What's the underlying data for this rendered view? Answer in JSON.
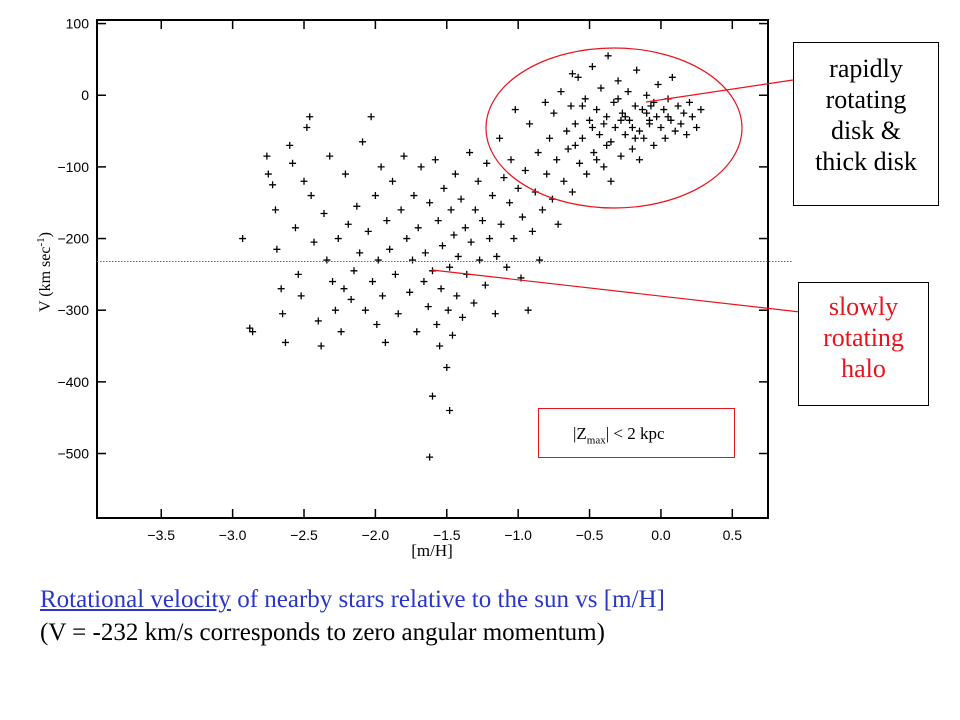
{
  "chart_data": {
    "type": "scatter",
    "xlabel": "[m/H]",
    "ylabel": "V (km sec",
    "ylabel_sup": "-1",
    "ylabel_close": ")",
    "xlim": [
      -3.95,
      0.75
    ],
    "ylim": [
      -590,
      105
    ],
    "xticks": [
      -3.5,
      -3.0,
      -2.5,
      -2.0,
      -1.5,
      -1.0,
      -0.5,
      0.0,
      0.5
    ],
    "xtick_labels": [
      "−3.5",
      "−3.0",
      "−2.5",
      "−2.0",
      "−1.5",
      "−1.0",
      "−0.5",
      "0.0",
      "0.5"
    ],
    "yticks": [
      100,
      0,
      -100,
      -200,
      -300,
      -400,
      -500
    ],
    "ytick_labels": [
      "100",
      "0",
      "−100",
      "−200",
      "−300",
      "−400",
      "−500"
    ],
    "marker": "plus",
    "reference_line_v": -232,
    "series": [
      {
        "values": [
          [
            -2.93,
            -200
          ],
          [
            -2.88,
            -325
          ],
          [
            -2.86,
            -330
          ],
          [
            -2.76,
            -85
          ],
          [
            -2.75,
            -110
          ],
          [
            -2.72,
            -125
          ],
          [
            -2.7,
            -160
          ],
          [
            -2.69,
            -215
          ],
          [
            -2.66,
            -270
          ],
          [
            -2.65,
            -305
          ],
          [
            -2.63,
            -345
          ],
          [
            -2.6,
            -70
          ],
          [
            -2.58,
            -95
          ],
          [
            -2.56,
            -185
          ],
          [
            -2.54,
            -250
          ],
          [
            -2.52,
            -280
          ],
          [
            -2.5,
            -120
          ],
          [
            -2.48,
            -45
          ],
          [
            -2.46,
            -30
          ],
          [
            -2.45,
            -140
          ],
          [
            -2.43,
            -205
          ],
          [
            -2.4,
            -315
          ],
          [
            -2.38,
            -350
          ],
          [
            -2.36,
            -165
          ],
          [
            -2.34,
            -230
          ],
          [
            -2.32,
            -85
          ],
          [
            -2.3,
            -260
          ],
          [
            -2.28,
            -300
          ],
          [
            -2.26,
            -200
          ],
          [
            -2.24,
            -330
          ],
          [
            -2.22,
            -270
          ],
          [
            -2.21,
            -110
          ],
          [
            -2.19,
            -180
          ],
          [
            -2.17,
            -285
          ],
          [
            -2.15,
            -245
          ],
          [
            -2.13,
            -155
          ],
          [
            -2.11,
            -220
          ],
          [
            -2.09,
            -65
          ],
          [
            -2.07,
            -300
          ],
          [
            -2.05,
            -190
          ],
          [
            -2.03,
            -30
          ],
          [
            -2.02,
            -260
          ],
          [
            -2.0,
            -140
          ],
          [
            -1.99,
            -320
          ],
          [
            -1.98,
            -230
          ],
          [
            -1.96,
            -100
          ],
          [
            -1.95,
            -280
          ],
          [
            -1.93,
            -345
          ],
          [
            -1.92,
            -175
          ],
          [
            -1.9,
            -215
          ],
          [
            -1.88,
            -120
          ],
          [
            -1.86,
            -250
          ],
          [
            -1.84,
            -305
          ],
          [
            -1.82,
            -160
          ],
          [
            -1.8,
            -85
          ],
          [
            -1.78,
            -200
          ],
          [
            -1.76,
            -275
          ],
          [
            -1.74,
            -230
          ],
          [
            -1.73,
            -140
          ],
          [
            -1.71,
            -330
          ],
          [
            -1.7,
            -185
          ],
          [
            -1.68,
            -100
          ],
          [
            -1.66,
            -260
          ],
          [
            -1.65,
            -220
          ],
          [
            -1.63,
            -295
          ],
          [
            -1.62,
            -150
          ],
          [
            -1.6,
            -245
          ],
          [
            -1.58,
            -90
          ],
          [
            -1.57,
            -320
          ],
          [
            -1.56,
            -175
          ],
          [
            -1.55,
            -350
          ],
          [
            -1.54,
            -270
          ],
          [
            -1.53,
            -210
          ],
          [
            -1.52,
            -130
          ],
          [
            -1.5,
            -380
          ],
          [
            -1.49,
            -300
          ],
          [
            -1.48,
            -240
          ],
          [
            -1.47,
            -160
          ],
          [
            -1.46,
            -335
          ],
          [
            -1.45,
            -195
          ],
          [
            -1.44,
            -110
          ],
          [
            -1.43,
            -280
          ],
          [
            -1.42,
            -225
          ],
          [
            -1.4,
            -145
          ],
          [
            -1.39,
            -310
          ],
          [
            -1.37,
            -185
          ],
          [
            -1.36,
            -250
          ],
          [
            -1.34,
            -80
          ],
          [
            -1.33,
            -205
          ],
          [
            -1.31,
            -290
          ],
          [
            -1.3,
            -160
          ],
          [
            -1.28,
            -120
          ],
          [
            -1.27,
            -230
          ],
          [
            -1.25,
            -175
          ],
          [
            -1.23,
            -265
          ],
          [
            -1.22,
            -95
          ],
          [
            -1.2,
            -200
          ],
          [
            -1.18,
            -140
          ],
          [
            -1.16,
            -305
          ],
          [
            -1.15,
            -225
          ],
          [
            -1.13,
            -60
          ],
          [
            -1.12,
            -180
          ],
          [
            -1.1,
            -115
          ],
          [
            -1.08,
            -240
          ],
          [
            -1.06,
            -150
          ],
          [
            -1.05,
            -90
          ],
          [
            -1.03,
            -200
          ],
          [
            -1.02,
            -20
          ],
          [
            -1.0,
            -130
          ],
          [
            -0.98,
            -255
          ],
          [
            -0.97,
            -170
          ],
          [
            -0.95,
            -105
          ],
          [
            -0.93,
            -300
          ],
          [
            -0.92,
            -40
          ],
          [
            -0.9,
            -190
          ],
          [
            -0.88,
            -135
          ],
          [
            -0.86,
            -80
          ],
          [
            -0.85,
            -230
          ],
          [
            -0.83,
            -160
          ],
          [
            -0.81,
            -10
          ],
          [
            -0.8,
            -110
          ],
          [
            -0.78,
            -60
          ],
          [
            -0.76,
            -145
          ],
          [
            -0.75,
            -25
          ],
          [
            -0.73,
            -90
          ],
          [
            -0.72,
            -180
          ],
          [
            -0.7,
            5
          ],
          [
            -0.68,
            -120
          ],
          [
            -0.66,
            -50
          ],
          [
            -0.65,
            -75
          ],
          [
            -0.63,
            -15
          ],
          [
            -0.62,
            -135
          ],
          [
            -0.6,
            -40
          ],
          [
            -0.58,
            25
          ],
          [
            -0.57,
            -95
          ],
          [
            -0.55,
            -60
          ],
          [
            -0.53,
            -5
          ],
          [
            -0.52,
            -110
          ],
          [
            -0.5,
            -35
          ],
          [
            -0.48,
            40
          ],
          [
            -0.47,
            -80
          ],
          [
            -0.45,
            -20
          ],
          [
            -0.43,
            -55
          ],
          [
            -0.42,
            10
          ],
          [
            -0.4,
            -100
          ],
          [
            -0.38,
            -30
          ],
          [
            -0.37,
            55
          ],
          [
            -0.35,
            -65
          ],
          [
            -0.33,
            -10
          ],
          [
            -0.32,
            -45
          ],
          [
            -0.3,
            20
          ],
          [
            -0.28,
            -85
          ],
          [
            -0.27,
            -25
          ],
          [
            -0.25,
            -55
          ],
          [
            -0.23,
            5
          ],
          [
            -0.22,
            -35
          ],
          [
            -0.2,
            -75
          ],
          [
            -0.18,
            -15
          ],
          [
            -0.17,
            35
          ],
          [
            -0.15,
            -50
          ],
          [
            -0.13,
            -20
          ],
          [
            -0.12,
            -60
          ],
          [
            -0.1,
            0
          ],
          [
            -0.08,
            -40
          ],
          [
            -0.07,
            -15
          ],
          [
            -0.05,
            -70
          ],
          [
            -0.03,
            -30
          ],
          [
            -0.02,
            15
          ],
          [
            0.0,
            -45
          ],
          [
            0.02,
            -20
          ],
          [
            0.03,
            -60
          ],
          [
            0.05,
            -5
          ],
          [
            0.07,
            -35
          ],
          [
            0.08,
            25
          ],
          [
            0.1,
            -50
          ],
          [
            0.12,
            -15
          ],
          [
            0.14,
            -40
          ],
          [
            0.16,
            -25
          ],
          [
            0.18,
            -55
          ],
          [
            0.2,
            -10
          ],
          [
            0.22,
            -30
          ],
          [
            0.25,
            -45
          ],
          [
            0.28,
            -20
          ],
          [
            -0.6,
            -70
          ],
          [
            -0.45,
            -90
          ],
          [
            -0.35,
            -120
          ],
          [
            -0.25,
            -30
          ],
          [
            -0.15,
            -90
          ],
          [
            -0.05,
            -10
          ],
          [
            -0.55,
            -15
          ],
          [
            -0.4,
            -40
          ],
          [
            -0.3,
            -5
          ],
          [
            -0.2,
            -45
          ],
          [
            -0.1,
            -25
          ],
          [
            0.05,
            -30
          ],
          [
            -0.62,
            30
          ],
          [
            -0.48,
            -45
          ],
          [
            -0.38,
            -70
          ],
          [
            -0.28,
            -35
          ],
          [
            -0.18,
            -60
          ],
          [
            -0.08,
            -35
          ],
          [
            -1.6,
            -420
          ],
          [
            -1.48,
            -440
          ],
          [
            -1.62,
            -505
          ]
        ]
      }
    ]
  },
  "annotations": {
    "disk_label": [
      "rapidly",
      "rotating",
      "disk &",
      "thick disk"
    ],
    "halo_label": [
      "slowly",
      "rotating",
      "halo"
    ],
    "zmax_prefix": "|Z",
    "zmax_sub": "max",
    "zmax_suffix": "|  < 2 kpc"
  },
  "caption": {
    "link": "Rotational velocity",
    "line1_rest": " of nearby stars relative to the  sun vs [m/H]",
    "line2": "(V = -232 km/s corresponds to zero angular momentum)"
  },
  "colors": {
    "highlight": "#e8141c",
    "caption_blue": "#2a35c9",
    "reference_line": "#5a5ad0"
  }
}
